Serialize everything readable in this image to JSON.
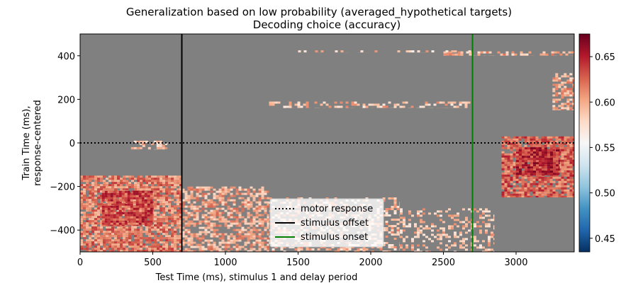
{
  "chart_data": {
    "type": "heatmap",
    "title": "Generalization based on low probability (averaged_hypothetical targets)",
    "subtitle": "Decoding choice (accuracy)",
    "xlabel": "Test Time (ms), stimulus 1 and delay period",
    "ylabel_line1": "Train Time (ms),",
    "ylabel_line2": "response-centered",
    "xlim": [
      0,
      3400
    ],
    "ylim": [
      -500,
      500
    ],
    "x_ticks": [
      0,
      500,
      1000,
      1500,
      2000,
      2500,
      3000
    ],
    "y_ticks": [
      -400,
      -200,
      0,
      200,
      400
    ],
    "background_value_color": "#808080",
    "colorbar": {
      "colormap": "RdBu_r",
      "vmin": 0.435,
      "vmax": 0.675,
      "ticks": [
        0.45,
        0.5,
        0.55,
        0.6,
        0.65
      ]
    },
    "reference_lines": [
      {
        "orientation": "horizontal",
        "value": 0,
        "style": "dotted",
        "color": "#000000",
        "label": "motor response"
      },
      {
        "orientation": "vertical",
        "value": 700,
        "style": "solid",
        "color": "#000000",
        "label": "stimulus offset"
      },
      {
        "orientation": "vertical",
        "value": 2700,
        "style": "solid",
        "color": "#008000",
        "label": "stimulus onset"
      }
    ],
    "legend_position": "lower-center",
    "significant_regions": [
      {
        "x": [
          0,
          700
        ],
        "y": [
          -500,
          -150
        ],
        "mean": 0.615,
        "density": 0.85
      },
      {
        "x": [
          150,
          500
        ],
        "y": [
          -380,
          -220
        ],
        "mean": 0.635,
        "density": 0.9
      },
      {
        "x": [
          700,
          1300
        ],
        "y": [
          -500,
          -200
        ],
        "mean": 0.6,
        "density": 0.6
      },
      {
        "x": [
          1300,
          2200
        ],
        "y": [
          -500,
          -250
        ],
        "mean": 0.59,
        "density": 0.35
      },
      {
        "x": [
          2200,
          2850
        ],
        "y": [
          -500,
          -300
        ],
        "mean": 0.59,
        "density": 0.3
      },
      {
        "x": [
          2900,
          3400
        ],
        "y": [
          -250,
          30
        ],
        "mean": 0.625,
        "density": 0.85
      },
      {
        "x": [
          3000,
          3300
        ],
        "y": [
          -150,
          -20
        ],
        "mean": 0.645,
        "density": 0.95
      },
      {
        "x": [
          3250,
          3400
        ],
        "y": [
          150,
          320
        ],
        "mean": 0.6,
        "density": 0.6
      },
      {
        "x": [
          1300,
          2700
        ],
        "y": [
          160,
          190
        ],
        "mean": 0.59,
        "density": 0.4
      },
      {
        "x": [
          2500,
          3400
        ],
        "y": [
          400,
          420
        ],
        "mean": 0.595,
        "density": 0.5
      },
      {
        "x": [
          1500,
          2700
        ],
        "y": [
          415,
          425
        ],
        "mean": 0.585,
        "density": 0.25
      },
      {
        "x": [
          350,
          600
        ],
        "y": [
          -30,
          10
        ],
        "mean": 0.59,
        "density": 0.4
      }
    ]
  }
}
